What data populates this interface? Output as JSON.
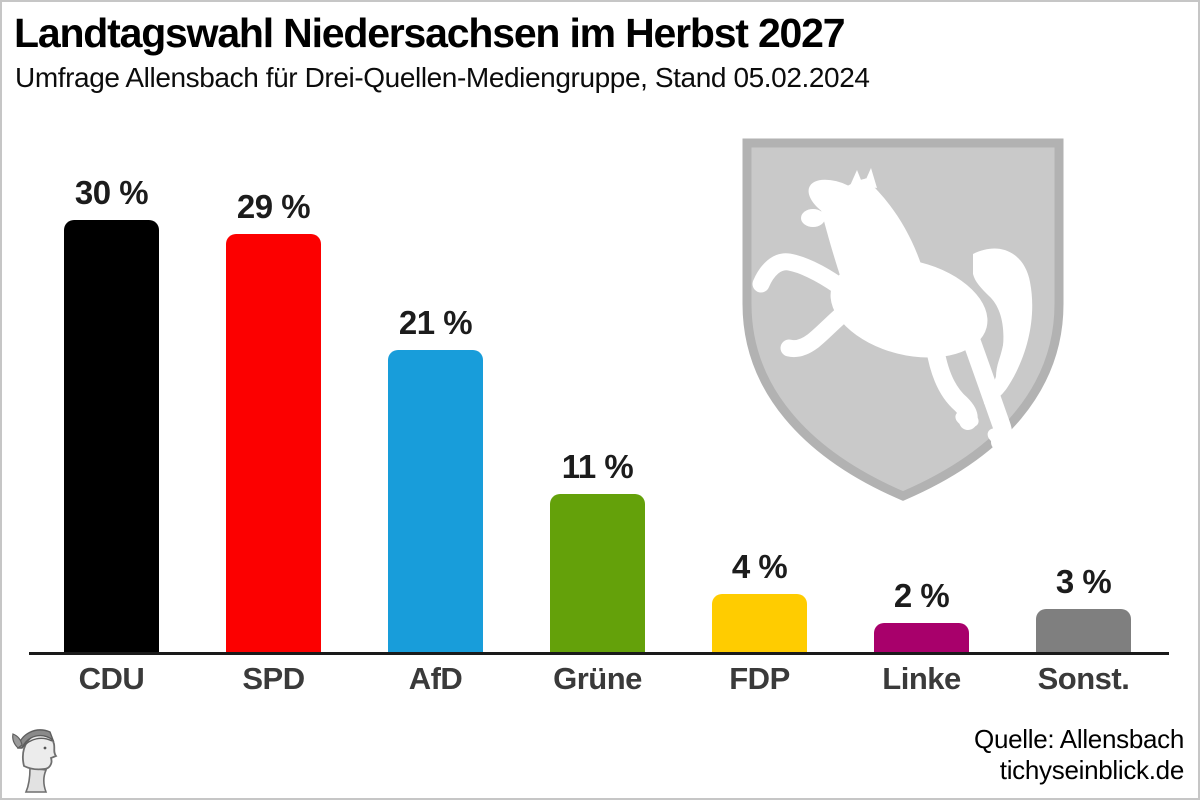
{
  "header": {
    "title": "Landtagswahl Niedersachsen im Herbst 2027",
    "subtitle": "Umfrage Allensbach für Drei-Quellen-Mediengruppe, Stand 05.02.2024"
  },
  "chart_data": {
    "type": "bar",
    "title": "Landtagswahl Niedersachsen im Herbst 2027",
    "subtitle": "Umfrage Allensbach für Drei-Quellen-Mediengruppe, Stand 05.02.2024",
    "categories": [
      "CDU",
      "SPD",
      "AfD",
      "Grüne",
      "FDP",
      "Linke",
      "Sonst."
    ],
    "values": [
      30,
      29,
      21,
      11,
      4,
      2,
      3
    ],
    "value_labels": [
      "30 %",
      "29 %",
      "21 %",
      "11 %",
      "4 %",
      "2 %",
      "3 %"
    ],
    "bar_colors": [
      "#000000",
      "#fc0000",
      "#189dda",
      "#64a10a",
      "#ffcc00",
      "#a8006b",
      "#7f7f7f"
    ],
    "xlabel": "",
    "ylabel": "",
    "ylim": [
      0,
      32
    ],
    "grid": false,
    "legend": "none",
    "unit": "%"
  },
  "decorations": {
    "coat_of_arms_icon": "niedersachsen-coat-of-arms",
    "coat_of_arms_shield_color": "#c9c9c9",
    "coat_of_arms_border_color": "#b2b2b2",
    "coat_of_arms_horse_color": "#ffffff",
    "logo_icon": "tichys-einblick-hermes-head-logo",
    "frame_border_color": "#c6c6c6",
    "axis_color": "#1a1a1a"
  },
  "footer": {
    "source": "Quelle: Allensbach",
    "website": "tichyseinblick.de"
  }
}
